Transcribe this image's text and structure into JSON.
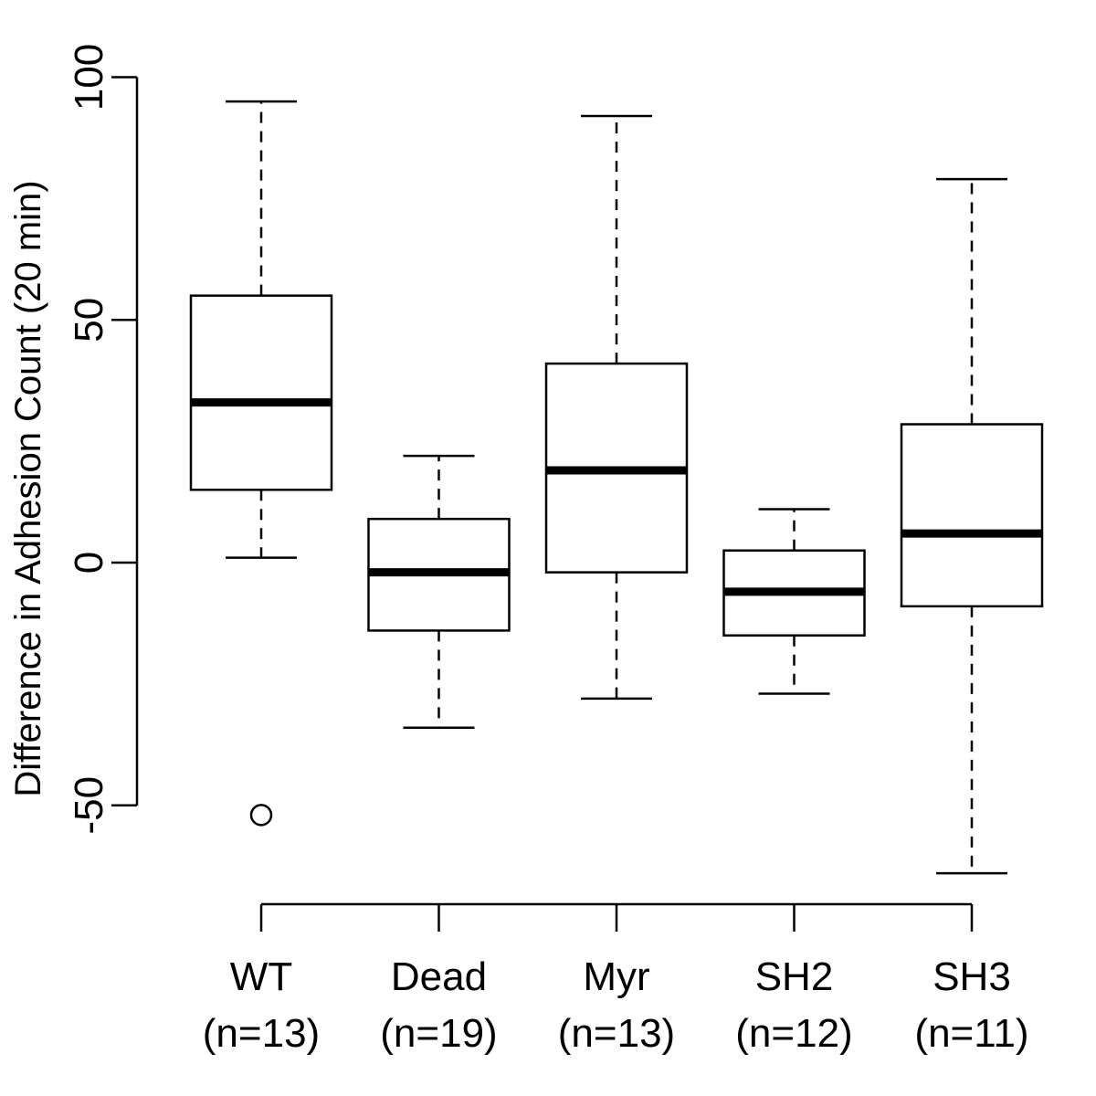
{
  "chart_data": {
    "type": "box",
    "ylabel": "Difference in Adhesion Count (20 min)",
    "ylim": [
      -50,
      100
    ],
    "yticks": [
      -50,
      0,
      50,
      100
    ],
    "categories": [
      "WT",
      "Dead",
      "Myr",
      "SH2",
      "SH3"
    ],
    "counts": [
      "(n=13)",
      "(n=19)",
      "(n=13)",
      "(n=12)",
      "(n=11)"
    ],
    "boxes": [
      {
        "category": "WT",
        "whisker_low": 1,
        "q1": 15,
        "median": 33,
        "q3": 55,
        "whisker_high": 95,
        "outliers": [
          -52
        ]
      },
      {
        "category": "Dead",
        "whisker_low": -34,
        "q1": -14,
        "median": -2,
        "q3": 9,
        "whisker_high": 22,
        "outliers": []
      },
      {
        "category": "Myr",
        "whisker_low": -28,
        "q1": -2,
        "median": 19,
        "q3": 41,
        "whisker_high": 92,
        "outliers": []
      },
      {
        "category": "SH2",
        "whisker_low": -27,
        "q1": -15,
        "median": -6,
        "q3": 2.5,
        "whisker_high": 11,
        "outliers": []
      },
      {
        "category": "SH3",
        "whisker_low": -64,
        "q1": -9,
        "median": 6,
        "q3": 28.5,
        "whisker_high": 79,
        "outliers": []
      }
    ],
    "grid": false,
    "legend": "none"
  }
}
